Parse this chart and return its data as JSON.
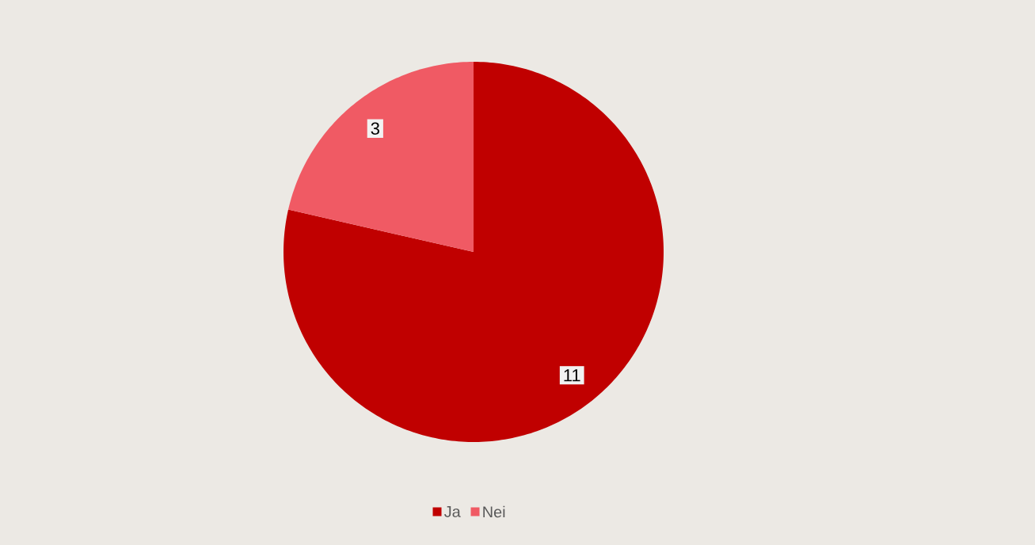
{
  "chart_data": {
    "type": "pie",
    "categories": [
      "Ja",
      "Nei"
    ],
    "values": [
      11,
      3
    ],
    "colors": [
      "#c00000",
      "#f05a64"
    ],
    "data_labels": true,
    "legend": "bottom"
  }
}
